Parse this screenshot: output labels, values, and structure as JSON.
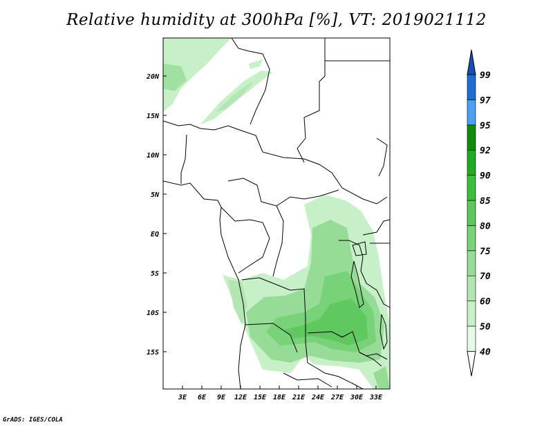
{
  "title": "Relative humidity at 300hPa [%], VT: 2019021112",
  "credit": "GrADS: IGES/COLA",
  "map": {
    "lat_labels": [
      "20N",
      "15N",
      "10N",
      "5N",
      "EQ",
      "5S",
      "10S",
      "15S"
    ],
    "lon_labels": [
      "3E",
      "6E",
      "9E",
      "12E",
      "15E",
      "18E",
      "21E",
      "24E",
      "27E",
      "30E",
      "33E"
    ]
  },
  "colorbar": {
    "levels": [
      "40",
      "50",
      "60",
      "70",
      "75",
      "80",
      "85",
      "90",
      "92",
      "95",
      "97",
      "99"
    ],
    "colors": [
      "#ffffff",
      "#e6fae6",
      "#c8f0c8",
      "#b4e6b4",
      "#96dc96",
      "#78d278",
      "#5ac85a",
      "#3cbe3c",
      "#22aa22",
      "#0f8c0f",
      "#4ca0f0",
      "#1e6ed2",
      "#1450b4"
    ]
  }
}
